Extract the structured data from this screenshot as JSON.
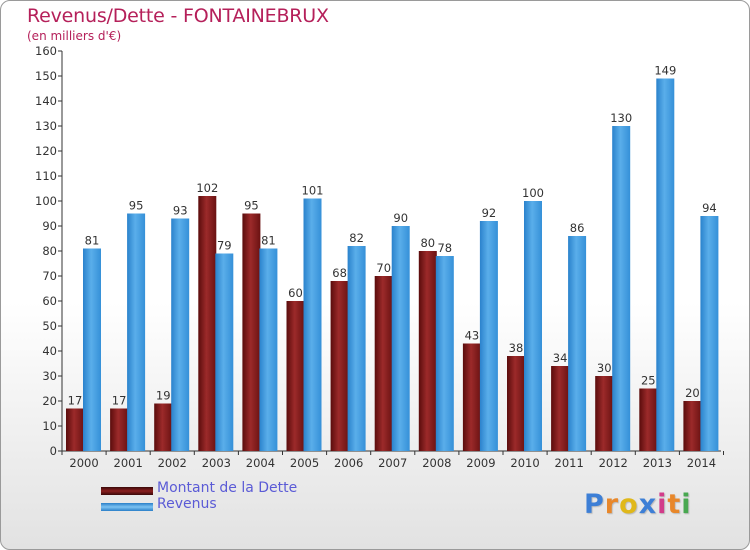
{
  "title": "Revenus/Dette - FONTAINEBRUX",
  "unit_label": "(en milliers d'€)",
  "colors": {
    "title": "#b5205a",
    "dette": "#7a1515",
    "revenus": "#3d9ae0",
    "legend_text": "#5b5bd6"
  },
  "legend": {
    "dette_label": "Montant de la Dette",
    "revenus_label": "Revenus"
  },
  "logo": {
    "text": "Proxiti",
    "letter_colors": [
      "#3d7fd6",
      "#e8872a",
      "#e0b81a",
      "#3d7fd6",
      "#d23c8a",
      "#e8872a",
      "#48a850"
    ]
  },
  "chart_data": {
    "type": "bar",
    "title": "Revenus/Dette - FONTAINEBRUX",
    "ylabel": "(en milliers d'€)",
    "ylim": [
      0,
      160
    ],
    "yticks": [
      0,
      10,
      20,
      30,
      40,
      50,
      60,
      70,
      80,
      90,
      100,
      110,
      120,
      130,
      140,
      150,
      160
    ],
    "grid": false,
    "legend_position": "bottom-left",
    "categories": [
      "2000",
      "2001",
      "2002",
      "2003",
      "2004",
      "2005",
      "2006",
      "2007",
      "2008",
      "2009",
      "2010",
      "2011",
      "2012",
      "2013",
      "2014"
    ],
    "series": [
      {
        "name": "Montant de la Dette",
        "values": [
          17,
          17,
          19,
          102,
          95,
          60,
          68,
          70,
          80,
          43,
          38,
          34,
          30,
          25,
          20
        ]
      },
      {
        "name": "Revenus",
        "values": [
          81,
          95,
          93,
          79,
          81,
          101,
          82,
          90,
          78,
          92,
          100,
          86,
          130,
          149,
          94
        ]
      }
    ]
  }
}
